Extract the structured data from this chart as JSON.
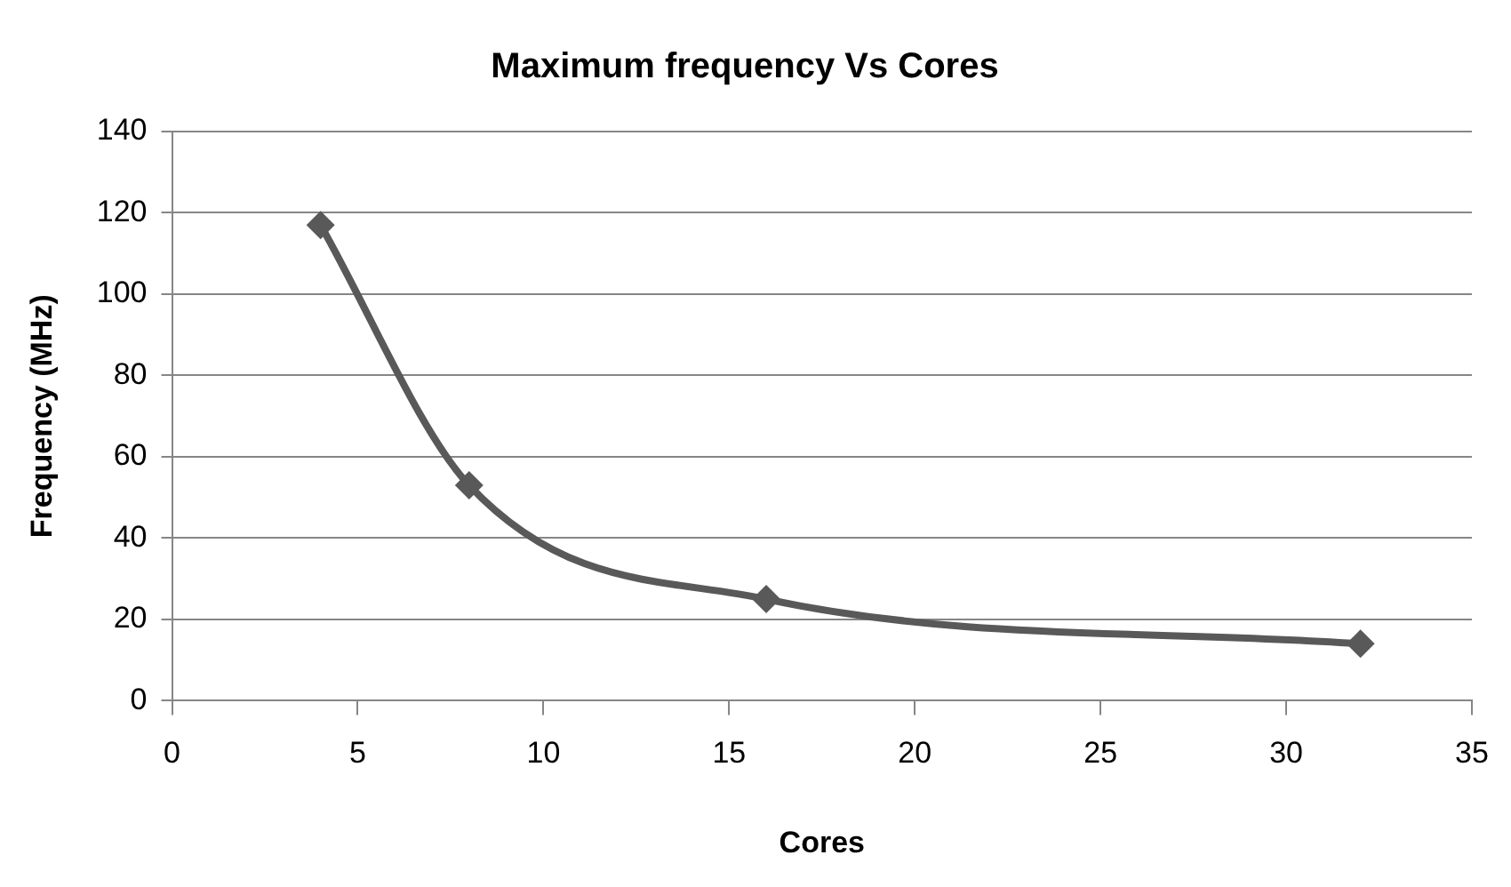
{
  "chart_data": {
    "type": "line",
    "title": "Maximum frequency Vs Cores",
    "xlabel": "Cores",
    "ylabel": "Frequency (MHz)",
    "x": [
      4,
      8,
      16,
      32
    ],
    "series": [
      {
        "color": "#595959",
        "values": [
          117,
          53,
          25,
          14
        ]
      }
    ],
    "xlim": [
      0,
      35
    ],
    "xticks": [
      0,
      5,
      10,
      15,
      20,
      25,
      30,
      35
    ],
    "ylim": [
      0,
      140
    ],
    "yticks": [
      0,
      20,
      40,
      60,
      80,
      100,
      120,
      140
    ],
    "grid": "y",
    "legend": false,
    "marker": "diamond",
    "line_style": "solid"
  }
}
